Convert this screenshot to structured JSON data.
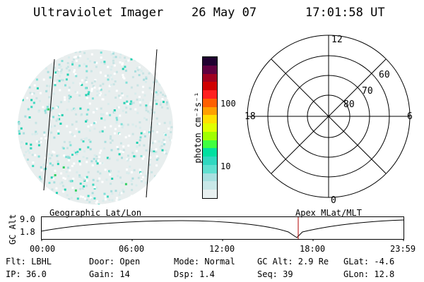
{
  "header": {
    "title": "Ultraviolet Imager",
    "date": "26 May 07",
    "time": "17:01:58 UT"
  },
  "colorbar": {
    "unit_label": "photon cm⁻²s⁻¹",
    "tick_labels": [
      "100",
      "10"
    ],
    "colors": [
      "#e8f0f0",
      "#c8e8e8",
      "#a8e0e0",
      "#60e0d0",
      "#30d8c0",
      "#00e0a0",
      "#40ff40",
      "#a0ff00",
      "#e0ff00",
      "#ffe000",
      "#ffa000",
      "#ff6000",
      "#ff2020",
      "#d00000",
      "#a00020",
      "#600040",
      "#200030"
    ]
  },
  "polar_plot": {
    "mlt_labels": [
      "12",
      "18",
      "6",
      "0"
    ],
    "lat_labels": [
      "60",
      "70",
      "80"
    ]
  },
  "timeline": {
    "left_label": "Geographic Lat/Lon",
    "right_label": "Apex MLat/MLT",
    "axis_title": "GC Alt",
    "y_ticks": [
      "9.0",
      "1.8"
    ],
    "x_ticks": [
      "00:00",
      "06:00",
      "12:00",
      "18:00",
      "23:59"
    ],
    "marker_color": "#b00000"
  },
  "info": {
    "flt": "Flt: LBHL",
    "door": "Door: Open",
    "mode": "Mode: Normal",
    "gc_alt": "GC Alt: 2.9 Re",
    "glat": "GLat:  -4.6",
    "ip": "IP: 36.0",
    "gain": "Gain: 14",
    "dsp": "Dsp:    1.4",
    "seq": "Seq: 39",
    "glon": "GLon:  12.8"
  }
}
